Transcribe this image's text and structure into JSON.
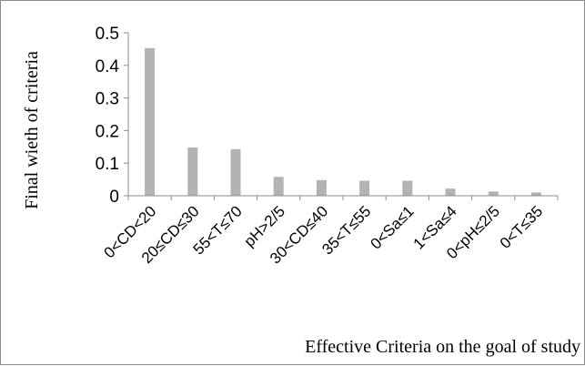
{
  "chart_data": {
    "type": "bar",
    "title": "",
    "xlabel": "Effective Criteria on the goal of study",
    "ylabel": "Final wieth of criteria",
    "ylim": [
      0,
      0.5
    ],
    "yticks": [
      "0",
      "0.1",
      "0.2",
      "0.3",
      "0.4",
      "0.5"
    ],
    "grid": false,
    "legend": "none",
    "bar_color": "#b3b3b3",
    "categories": [
      "0<CD<20",
      "20≤CD≤30",
      "55<T≤70",
      "pH>2/5",
      "30<CD≤40",
      "35<T≤55",
      "0<Sa≤1",
      "1<Sa≤4",
      "0<pH≤2/5",
      "0<T≤35"
    ],
    "values": [
      0.453,
      0.148,
      0.143,
      0.058,
      0.048,
      0.046,
      0.046,
      0.022,
      0.013,
      0.01
    ]
  }
}
